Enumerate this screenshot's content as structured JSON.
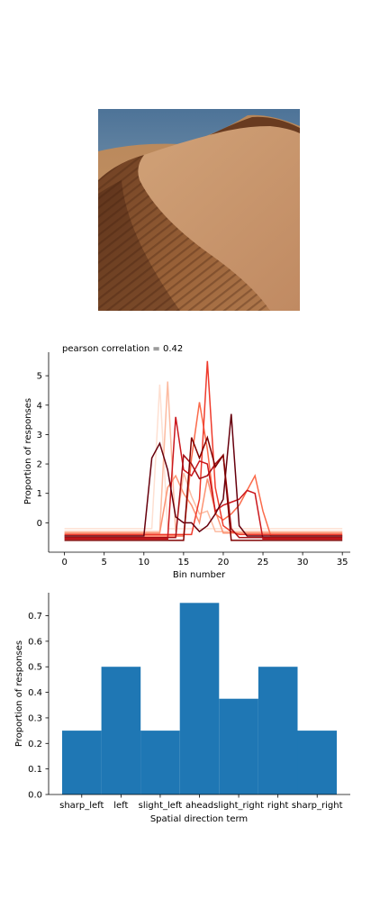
{
  "chart_data": [
    {
      "type": "line",
      "title": "pearson correlation = 0.42",
      "xlabel": "Bin number",
      "ylabel": "Proportion of responses",
      "xlim": [
        -2,
        36
      ],
      "ylim": [
        -1,
        5.8
      ],
      "xticks": [
        0,
        5,
        10,
        15,
        20,
        25,
        30,
        35
      ],
      "yticks": [
        0,
        1,
        2,
        3,
        4,
        5
      ],
      "grid": false,
      "legend": "none",
      "x": [
        0,
        1,
        2,
        3,
        4,
        5,
        6,
        7,
        8,
        9,
        10,
        11,
        12,
        13,
        14,
        15,
        16,
        17,
        18,
        19,
        20,
        21,
        22,
        23,
        24,
        25,
        26,
        27,
        28,
        29,
        30,
        31,
        32,
        33,
        34,
        35
      ],
      "series": [
        {
          "color": "#fee0d2",
          "values": [
            -0.2,
            -0.2,
            -0.2,
            -0.2,
            -0.2,
            -0.2,
            -0.2,
            -0.2,
            -0.2,
            -0.2,
            -0.2,
            -0.2,
            4.7,
            -0.2,
            -0.2,
            -0.2,
            -0.2,
            -0.2,
            -0.2,
            -0.2,
            -0.2,
            -0.2,
            -0.2,
            -0.2,
            -0.2,
            -0.2,
            -0.2,
            -0.2,
            -0.2,
            -0.2,
            -0.2,
            -0.2,
            -0.2,
            -0.2,
            -0.2,
            -0.2
          ]
        },
        {
          "color": "#fcbba1",
          "values": [
            -0.3,
            -0.3,
            -0.3,
            -0.3,
            -0.3,
            -0.3,
            -0.3,
            -0.3,
            -0.3,
            -0.3,
            -0.3,
            -0.3,
            -0.3,
            4.8,
            -0.3,
            1.7,
            0.9,
            0.3,
            0.4,
            -0.3,
            -0.3,
            -0.3,
            -0.3,
            -0.3,
            -0.3,
            -0.3,
            -0.3,
            -0.3,
            -0.3,
            -0.3,
            -0.3,
            -0.3,
            -0.3,
            -0.3,
            -0.3,
            -0.3
          ]
        },
        {
          "color": "#fc9272",
          "values": [
            -0.35,
            -0.35,
            -0.35,
            -0.35,
            -0.35,
            -0.35,
            -0.35,
            -0.35,
            -0.35,
            -0.35,
            -0.35,
            -0.35,
            -0.35,
            1.2,
            1.6,
            1.0,
            0.6,
            0.0,
            1.5,
            0.4,
            -0.35,
            -0.35,
            -0.35,
            -0.35,
            -0.35,
            -0.35,
            -0.35,
            -0.35,
            -0.35,
            -0.35,
            -0.35,
            -0.35,
            -0.35,
            -0.35,
            -0.35,
            -0.35
          ]
        },
        {
          "color": "#fb6a4a",
          "values": [
            -0.45,
            -0.45,
            -0.45,
            -0.45,
            -0.45,
            -0.45,
            -0.45,
            -0.45,
            -0.45,
            -0.45,
            -0.45,
            -0.45,
            -0.45,
            -0.45,
            -0.45,
            -0.45,
            2.2,
            4.1,
            2.5,
            0.3,
            0.1,
            0.3,
            0.6,
            1.1,
            1.6,
            0.4,
            -0.45,
            -0.45,
            -0.45,
            -0.45,
            -0.45,
            -0.45,
            -0.45,
            -0.45,
            -0.45,
            -0.45
          ]
        },
        {
          "color": "#ef3b2c",
          "values": [
            -0.4,
            -0.4,
            -0.4,
            -0.4,
            -0.4,
            -0.4,
            -0.4,
            -0.4,
            -0.4,
            -0.4,
            -0.4,
            -0.4,
            -0.4,
            -0.4,
            -0.4,
            -0.4,
            -0.4,
            0.8,
            5.5,
            1.2,
            -0.1,
            -0.3,
            -0.4,
            -0.4,
            -0.4,
            -0.4,
            -0.4,
            -0.4,
            -0.4,
            -0.4,
            -0.4,
            -0.4,
            -0.4,
            -0.4,
            -0.4,
            -0.4
          ]
        },
        {
          "color": "#cb181d",
          "values": [
            -0.55,
            -0.55,
            -0.55,
            -0.55,
            -0.55,
            -0.55,
            -0.55,
            -0.55,
            -0.55,
            -0.55,
            -0.55,
            -0.55,
            -0.55,
            -0.55,
            3.6,
            1.8,
            1.6,
            2.1,
            2.0,
            0.4,
            0.6,
            0.7,
            0.8,
            1.1,
            1.0,
            -0.55,
            -0.55,
            -0.55,
            -0.55,
            -0.55,
            -0.55,
            -0.55,
            -0.55,
            -0.55,
            -0.55,
            -0.55
          ]
        },
        {
          "color": "#a50f15",
          "values": [
            -0.5,
            -0.5,
            -0.5,
            -0.5,
            -0.5,
            -0.5,
            -0.5,
            -0.5,
            -0.5,
            -0.5,
            -0.5,
            -0.5,
            -0.5,
            -0.5,
            -0.5,
            2.3,
            2.0,
            1.5,
            1.6,
            2.0,
            2.3,
            -0.2,
            -0.5,
            -0.5,
            -0.5,
            -0.5,
            -0.5,
            -0.5,
            -0.5,
            -0.5,
            -0.5,
            -0.5,
            -0.5,
            -0.5,
            -0.5,
            -0.5
          ]
        },
        {
          "color": "#67000d",
          "values": [
            -0.45,
            -0.45,
            -0.45,
            -0.45,
            -0.45,
            -0.45,
            -0.45,
            -0.45,
            -0.45,
            -0.45,
            -0.45,
            2.2,
            2.7,
            1.8,
            0.2,
            0.0,
            0.0,
            -0.3,
            -0.1,
            0.3,
            0.8,
            3.7,
            -0.1,
            -0.45,
            -0.45,
            -0.45,
            -0.45,
            -0.45,
            -0.45,
            -0.45,
            -0.45,
            -0.45,
            -0.45,
            -0.45,
            -0.45,
            -0.45
          ]
        },
        {
          "color": "#7f0000",
          "values": [
            -0.6,
            -0.6,
            -0.6,
            -0.6,
            -0.6,
            -0.6,
            -0.6,
            -0.6,
            -0.6,
            -0.6,
            -0.6,
            -0.6,
            -0.6,
            -0.6,
            -0.6,
            -0.6,
            2.9,
            2.2,
            2.9,
            1.9,
            2.3,
            -0.6,
            -0.6,
            -0.6,
            -0.6,
            -0.6,
            -0.6,
            -0.6,
            -0.6,
            -0.6,
            -0.6,
            -0.6,
            -0.6,
            -0.6,
            -0.6,
            -0.6
          ]
        }
      ]
    },
    {
      "type": "bar",
      "xlabel": "Spatial direction term",
      "ylabel": "Proportion of responses",
      "ylim": [
        0,
        0.79
      ],
      "yticks": [
        0.0,
        0.1,
        0.2,
        0.3,
        0.4,
        0.5,
        0.6,
        0.7
      ],
      "ytick_labels": [
        "0.0",
        "0.1",
        "0.2",
        "0.3",
        "0.4",
        "0.5",
        "0.6",
        "0.7"
      ],
      "categories": [
        "sharp_left",
        "left",
        "slight_left",
        "ahead",
        "slight_right",
        "right",
        "sharp_right"
      ],
      "values": [
        0.25,
        0.5,
        0.25,
        0.75,
        0.375,
        0.5,
        0.25
      ],
      "bar_color": "#1f77b4",
      "grid": false
    }
  ],
  "image": {
    "name": "desert-dune-photo"
  }
}
